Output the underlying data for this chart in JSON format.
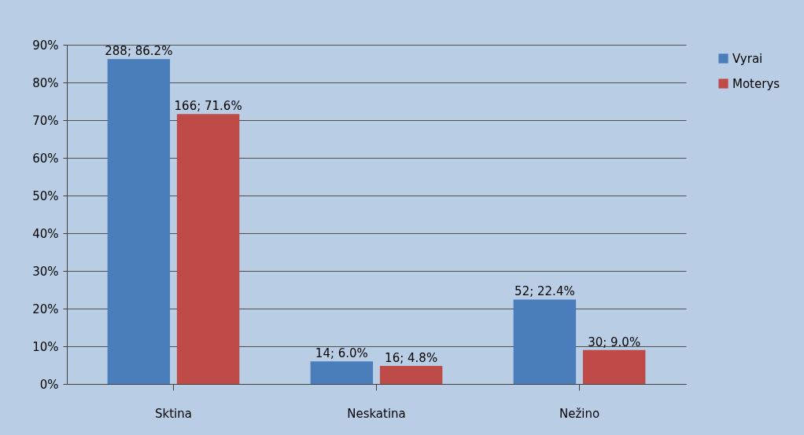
{
  "chart_data": {
    "type": "bar",
    "categories": [
      "Sktina",
      "Neskatina",
      "Nežino"
    ],
    "series": [
      {
        "name": "Vyrai",
        "color": "#4a7ebb",
        "values": [
          86.2,
          6.0,
          22.4
        ],
        "value_labels": [
          "288; 86.2%",
          "14; 6.0%",
          "52; 22.4%"
        ]
      },
      {
        "name": "Moterys",
        "color": "#be4b48",
        "values": [
          71.6,
          4.8,
          9.0
        ],
        "value_labels": [
          "166; 71.6%",
          "16; 4.8%",
          "30; 9.0%"
        ]
      }
    ],
    "ylim": [
      0,
      90
    ],
    "yticks": [
      {
        "value": 0,
        "label": "0%"
      },
      {
        "value": 10,
        "label": "10%"
      },
      {
        "value": 20,
        "label": "20%"
      },
      {
        "value": 30,
        "label": "30%"
      },
      {
        "value": 40,
        "label": "40%"
      },
      {
        "value": 50,
        "label": "50%"
      },
      {
        "value": 60,
        "label": "60%"
      },
      {
        "value": 70,
        "label": "70%"
      },
      {
        "value": 80,
        "label": "80%"
      },
      {
        "value": 90,
        "label": "90%"
      }
    ],
    "grid": "y",
    "legend": "right"
  }
}
